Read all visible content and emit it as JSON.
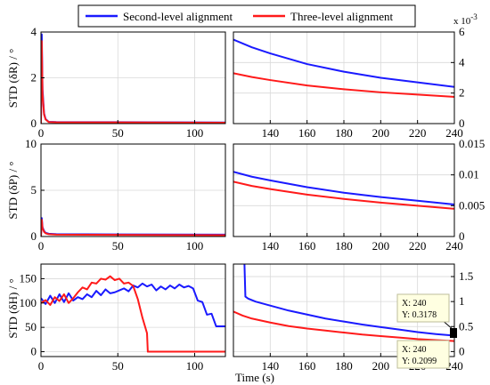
{
  "legend": {
    "entries": [
      {
        "label": "Second-level alignment",
        "color": "#1a1aff"
      },
      {
        "label": "Three-level alignment",
        "color": "#ff1a1a"
      }
    ]
  },
  "xlabel": "Time (s)",
  "right_top_exponent": {
    "base": "x 10",
    "exp": "-3"
  },
  "datatips": [
    {
      "x_label": "X: 240",
      "y_label": "Y: 0.3178"
    },
    {
      "x_label": "X: 240",
      "y_label": "Y: 0.2099"
    }
  ],
  "chart_data": [
    {
      "type": "line",
      "panel": "left-row1",
      "ylabel": "STD (δR) / °",
      "xlim": [
        0,
        120
      ],
      "ylim": [
        0,
        4
      ],
      "xticks": [
        0,
        50,
        100
      ],
      "yticks": [
        0,
        2,
        4
      ],
      "series": [
        {
          "name": "Second-level alignment",
          "color": "#1a1aff",
          "x": [
            0,
            0.5,
            1,
            2,
            3,
            5,
            10,
            120
          ],
          "y": [
            0,
            3.9,
            1.5,
            0.45,
            0.2,
            0.08,
            0.07,
            0.05
          ]
        },
        {
          "name": "Three-level alignment",
          "color": "#ff1a1a",
          "x": [
            0,
            0.5,
            1,
            2,
            3,
            5,
            10,
            120
          ],
          "y": [
            0,
            3.6,
            1.3,
            0.4,
            0.18,
            0.07,
            0.06,
            0.04
          ]
        }
      ]
    },
    {
      "type": "line",
      "panel": "right-row1",
      "xlim": [
        120,
        240
      ],
      "ylim": [
        0,
        6
      ],
      "y_multiplier": "x 10^-3",
      "xticks": [
        140,
        160,
        180,
        200,
        220,
        240
      ],
      "yticks": [
        0,
        2,
        4,
        6
      ],
      "series": [
        {
          "name": "Second-level alignment",
          "color": "#1a1aff",
          "x": [
            120,
            130,
            140,
            160,
            180,
            200,
            220,
            240
          ],
          "y": [
            5.5,
            5.0,
            4.6,
            3.9,
            3.4,
            3.0,
            2.7,
            2.4
          ]
        },
        {
          "name": "Three-level alignment",
          "color": "#ff1a1a",
          "x": [
            120,
            130,
            140,
            160,
            180,
            200,
            220,
            240
          ],
          "y": [
            3.3,
            3.05,
            2.85,
            2.5,
            2.25,
            2.05,
            1.9,
            1.75
          ]
        }
      ]
    },
    {
      "type": "line",
      "panel": "left-row2",
      "ylabel": "STD (δP) / °",
      "xlim": [
        0,
        120
      ],
      "ylim": [
        0,
        10
      ],
      "xticks": [
        0,
        50,
        100
      ],
      "yticks": [
        0,
        5,
        10
      ],
      "series": [
        {
          "name": "Second-level alignment",
          "color": "#1a1aff",
          "x": [
            0,
            0.5,
            1,
            2,
            3,
            5,
            10,
            120
          ],
          "y": [
            0,
            2.0,
            1.0,
            0.6,
            0.4,
            0.3,
            0.25,
            0.2
          ]
        },
        {
          "name": "Three-level alignment",
          "color": "#ff1a1a",
          "x": [
            0,
            0.5,
            1,
            2,
            3,
            5,
            10,
            120
          ],
          "y": [
            0,
            1.8,
            0.9,
            0.5,
            0.35,
            0.25,
            0.2,
            0.15
          ]
        }
      ]
    },
    {
      "type": "line",
      "panel": "right-row2",
      "xlim": [
        120,
        240
      ],
      "ylim": [
        0,
        0.015
      ],
      "xticks": [
        140,
        160,
        180,
        200,
        220,
        240
      ],
      "yticks": [
        0,
        0.005,
        0.01,
        0.015
      ],
      "series": [
        {
          "name": "Second-level alignment",
          "color": "#1a1aff",
          "x": [
            120,
            130,
            140,
            160,
            180,
            200,
            220,
            240
          ],
          "y": [
            0.0105,
            0.0097,
            0.0091,
            0.008,
            0.0071,
            0.0064,
            0.0058,
            0.0052
          ]
        },
        {
          "name": "Three-level alignment",
          "color": "#ff1a1a",
          "x": [
            120,
            130,
            140,
            160,
            180,
            200,
            220,
            240
          ],
          "y": [
            0.0089,
            0.0082,
            0.0077,
            0.0068,
            0.0061,
            0.0055,
            0.005,
            0.0045
          ]
        }
      ]
    },
    {
      "type": "line",
      "panel": "left-row3",
      "ylabel": "STD (δH) / °",
      "xlim": [
        0,
        120
      ],
      "ylim": [
        -10,
        180
      ],
      "xticks": [
        0,
        50,
        100
      ],
      "yticks": [
        0,
        50,
        100,
        150
      ],
      "series": [
        {
          "name": "Second-level alignment",
          "color": "#1a1aff",
          "x": [
            0,
            3,
            6,
            9,
            12,
            15,
            18,
            21,
            24,
            27,
            30,
            33,
            36,
            39,
            42,
            45,
            48,
            51,
            54,
            57,
            60,
            63,
            66,
            69,
            72,
            75,
            78,
            81,
            84,
            87,
            90,
            93,
            96,
            99,
            102,
            105,
            108,
            111,
            114,
            117,
            120
          ],
          "y": [
            110,
            98,
            115,
            100,
            118,
            102,
            120,
            105,
            112,
            108,
            118,
            112,
            125,
            116,
            128,
            120,
            122,
            126,
            130,
            124,
            136,
            132,
            140,
            134,
            138,
            126,
            134,
            128,
            136,
            130,
            138,
            132,
            135,
            130,
            105,
            102,
            76,
            78,
            52,
            52,
            52
          ]
        },
        {
          "name": "Three-level alignment",
          "color": "#ff1a1a",
          "x": [
            0,
            3,
            6,
            9,
            12,
            15,
            18,
            21,
            24,
            27,
            30,
            33,
            36,
            39,
            42,
            45,
            48,
            51,
            54,
            57,
            60,
            63,
            66,
            69,
            69.5,
            72,
            80,
            100,
            120
          ],
          "y": [
            100,
            106,
            96,
            112,
            104,
            118,
            100,
            110,
            122,
            132,
            128,
            142,
            140,
            150,
            148,
            155,
            147,
            150,
            140,
            142,
            135,
            108,
            70,
            38,
            0,
            0,
            0,
            0,
            0
          ]
        }
      ]
    },
    {
      "type": "line",
      "panel": "right-row3",
      "xlim": [
        120,
        240
      ],
      "ylim": [
        -0.1,
        1.75
      ],
      "xticks": [
        140,
        160,
        180,
        200,
        220,
        240
      ],
      "yticks": [
        0,
        0.5,
        1,
        1.5
      ],
      "series": [
        {
          "name": "Second-level alignment",
          "color": "#1a1aff",
          "x": [
            126,
            126.5,
            128,
            132,
            140,
            150,
            160,
            170,
            180,
            190,
            200,
            210,
            220,
            230,
            240
          ],
          "y": [
            1.75,
            1.1,
            1.06,
            1.0,
            0.92,
            0.82,
            0.74,
            0.66,
            0.6,
            0.54,
            0.49,
            0.44,
            0.39,
            0.35,
            0.3178
          ]
        },
        {
          "name": "Three-level alignment",
          "color": "#ff1a1a",
          "x": [
            120,
            125,
            130,
            140,
            150,
            160,
            170,
            180,
            190,
            200,
            210,
            220,
            230,
            240
          ],
          "y": [
            0.8,
            0.72,
            0.66,
            0.58,
            0.51,
            0.46,
            0.42,
            0.38,
            0.34,
            0.31,
            0.28,
            0.25,
            0.23,
            0.2099
          ]
        }
      ]
    }
  ]
}
